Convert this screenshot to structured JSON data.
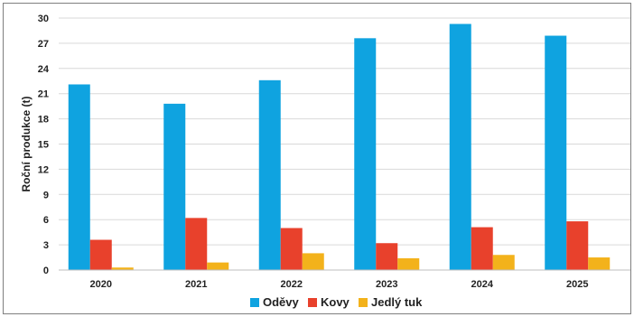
{
  "chart_data": {
    "type": "bar",
    "title": "",
    "xlabel": "",
    "ylabel": "Roční produkce (t)",
    "ylim": [
      0,
      30
    ],
    "yticks": [
      0,
      3,
      6,
      9,
      12,
      15,
      18,
      21,
      24,
      27,
      30
    ],
    "grid": "horizontal",
    "legend_position": "bottom",
    "categories": [
      "2020",
      "2021",
      "2022",
      "2023",
      "2024",
      "2025"
    ],
    "series": [
      {
        "name": "Oděvy",
        "color": "#0fa3e0",
        "values": [
          22.1,
          19.8,
          22.6,
          27.6,
          29.3,
          27.9
        ]
      },
      {
        "name": "Kovy",
        "color": "#e8412c",
        "values": [
          3.6,
          6.2,
          5.0,
          3.2,
          5.1,
          5.8
        ]
      },
      {
        "name": "Jedlý tuk",
        "color": "#f3b21b",
        "values": [
          0.3,
          0.9,
          2.0,
          1.4,
          1.8,
          1.5
        ]
      }
    ]
  }
}
